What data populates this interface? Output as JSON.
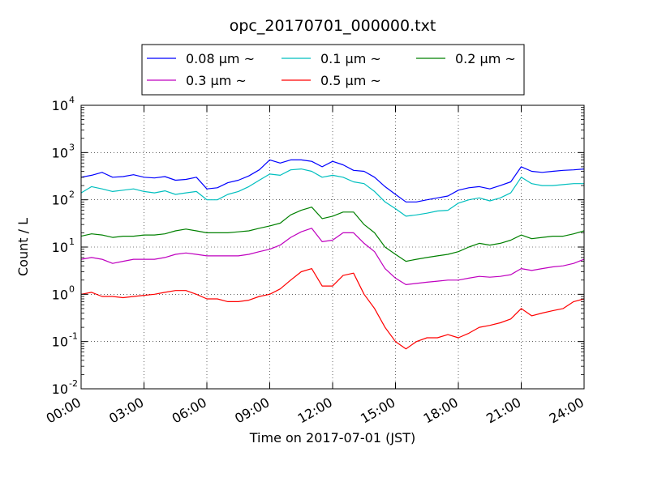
{
  "chart_data": {
    "type": "line",
    "title": "opc_20170701_000000.txt",
    "xlabel": "Time on 2017-07-01 (JST)",
    "ylabel": "Count / L",
    "yscale": "log",
    "ylim": [
      0.01,
      10000
    ],
    "xlim": [
      "2017-07-01T00:00",
      "2017-07-02T00:00"
    ],
    "grid": true,
    "legend_position": "top-center",
    "x_ticks": [
      "00:00",
      "03:00",
      "06:00",
      "09:00",
      "12:00",
      "15:00",
      "18:00",
      "21:00",
      "24:00"
    ],
    "y_ticks": [
      {
        "base": "10",
        "exp": "-2"
      },
      {
        "base": "10",
        "exp": "-1"
      },
      {
        "base": "10",
        "exp": "0"
      },
      {
        "base": "10",
        "exp": "1"
      },
      {
        "base": "10",
        "exp": "2"
      },
      {
        "base": "10",
        "exp": "3"
      },
      {
        "base": "10",
        "exp": "4"
      }
    ],
    "x": [
      "00:00",
      "00:30",
      "01:00",
      "01:30",
      "02:00",
      "02:30",
      "03:00",
      "03:30",
      "04:00",
      "04:30",
      "05:00",
      "05:30",
      "06:00",
      "06:30",
      "07:00",
      "07:30",
      "08:00",
      "08:30",
      "09:00",
      "09:30",
      "10:00",
      "10:30",
      "11:00",
      "11:30",
      "12:00",
      "12:30",
      "13:00",
      "13:30",
      "14:00",
      "14:30",
      "15:00",
      "15:30",
      "16:00",
      "16:30",
      "17:00",
      "17:30",
      "18:00",
      "18:30",
      "19:00",
      "19:30",
      "20:00",
      "20:30",
      "21:00",
      "21:30",
      "22:00",
      "22:30",
      "23:00",
      "23:30",
      "24:00"
    ],
    "series": [
      {
        "name": "0.08 μm ~",
        "color": "#0000ff",
        "values": [
          300,
          330,
          380,
          300,
          310,
          340,
          300,
          290,
          310,
          260,
          270,
          300,
          170,
          180,
          230,
          260,
          320,
          430,
          700,
          600,
          700,
          700,
          650,
          500,
          650,
          550,
          420,
          400,
          300,
          190,
          130,
          90,
          90,
          100,
          110,
          120,
          160,
          180,
          190,
          170,
          200,
          240,
          500,
          400,
          380,
          400,
          420,
          430,
          450
        ]
      },
      {
        "name": "0.1 μm ~",
        "color": "#00bfbf",
        "values": [
          140,
          190,
          170,
          150,
          160,
          170,
          150,
          140,
          155,
          130,
          140,
          150,
          100,
          100,
          130,
          150,
          190,
          260,
          350,
          330,
          430,
          450,
          400,
          300,
          330,
          300,
          240,
          220,
          150,
          90,
          65,
          45,
          48,
          52,
          58,
          60,
          85,
          100,
          110,
          95,
          110,
          140,
          300,
          220,
          200,
          200,
          210,
          220,
          220
        ]
      },
      {
        "name": "0.2 μm ~",
        "color": "#008000",
        "values": [
          17,
          19,
          18,
          16,
          17,
          17,
          18,
          18,
          19,
          22,
          24,
          22,
          20,
          20,
          20,
          21,
          22,
          25,
          28,
          32,
          48,
          60,
          70,
          40,
          45,
          55,
          55,
          30,
          20,
          10,
          7,
          5,
          5.5,
          6,
          6.5,
          7,
          8,
          10,
          12,
          11,
          12,
          14,
          18,
          15,
          16,
          17,
          17,
          19,
          22
        ]
      },
      {
        "name": "0.3 μm ~",
        "color": "#bf00bf",
        "values": [
          5.5,
          6,
          5.5,
          4.5,
          5,
          5.5,
          5.5,
          5.5,
          6,
          7,
          7.5,
          7,
          6.5,
          6.5,
          6.5,
          6.5,
          7,
          8,
          9,
          11,
          16,
          21,
          25,
          13,
          14,
          20,
          20,
          12,
          8,
          3.5,
          2.2,
          1.6,
          1.7,
          1.8,
          1.9,
          2,
          2,
          2.2,
          2.4,
          2.3,
          2.4,
          2.6,
          3.5,
          3.2,
          3.5,
          3.8,
          4,
          4.5,
          5.5
        ]
      },
      {
        "name": "0.5 μm ~",
        "color": "#ff0000",
        "values": [
          1,
          1.1,
          0.9,
          0.9,
          0.85,
          0.9,
          0.95,
          1,
          1.1,
          1.2,
          1.2,
          1,
          0.8,
          0.8,
          0.7,
          0.7,
          0.75,
          0.9,
          1,
          1.3,
          2,
          3,
          3.5,
          1.5,
          1.5,
          2.5,
          2.8,
          1,
          0.5,
          0.2,
          0.1,
          0.07,
          0.1,
          0.12,
          0.12,
          0.14,
          0.12,
          0.15,
          0.2,
          0.22,
          0.25,
          0.3,
          0.5,
          0.35,
          0.4,
          0.45,
          0.5,
          0.7,
          0.8
        ]
      }
    ]
  }
}
